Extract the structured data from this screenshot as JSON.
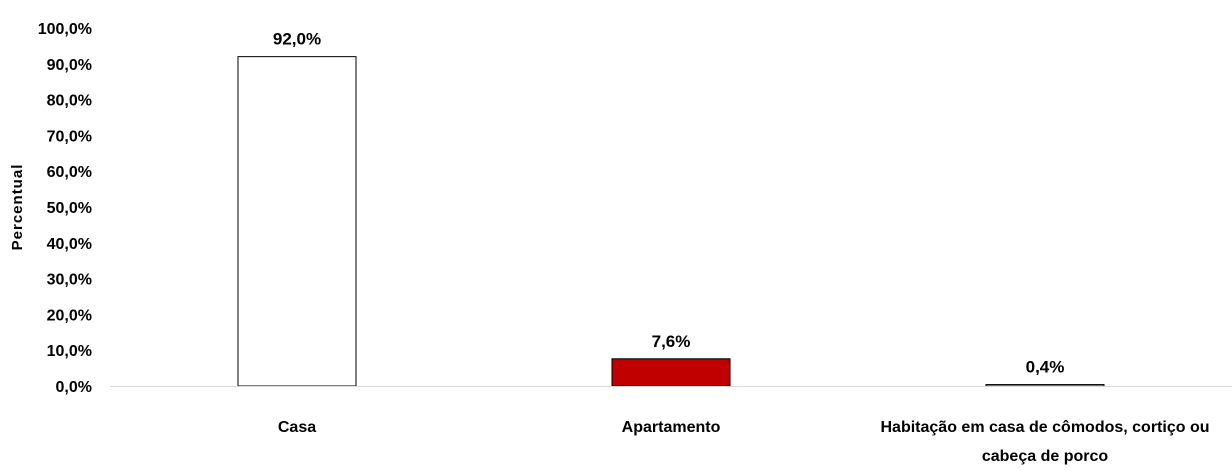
{
  "chart_data": {
    "type": "bar",
    "title": "",
    "xlabel": "",
    "ylabel": "Percentual",
    "ylim": [
      0,
      100
    ],
    "yticks": [
      "0,0%",
      "10,0%",
      "20,0%",
      "30,0%",
      "40,0%",
      "50,0%",
      "60,0%",
      "70,0%",
      "80,0%",
      "90,0%",
      "100,0%"
    ],
    "grid": false,
    "categories": [
      [
        "Casa"
      ],
      [
        "Apartamento"
      ],
      [
        "Habitação em casa de cômodos, cortiço ou",
        "cabeça de porco"
      ]
    ],
    "values": [
      92.0,
      7.6,
      0.4
    ],
    "data_labels": [
      "92,0%",
      "7,6%",
      "0,4%"
    ],
    "bar_colors": [
      "#ffffff",
      "#c00000",
      "#ffffff"
    ],
    "bar_stroke": "#000000",
    "axis_color": "#d9d9d9"
  }
}
